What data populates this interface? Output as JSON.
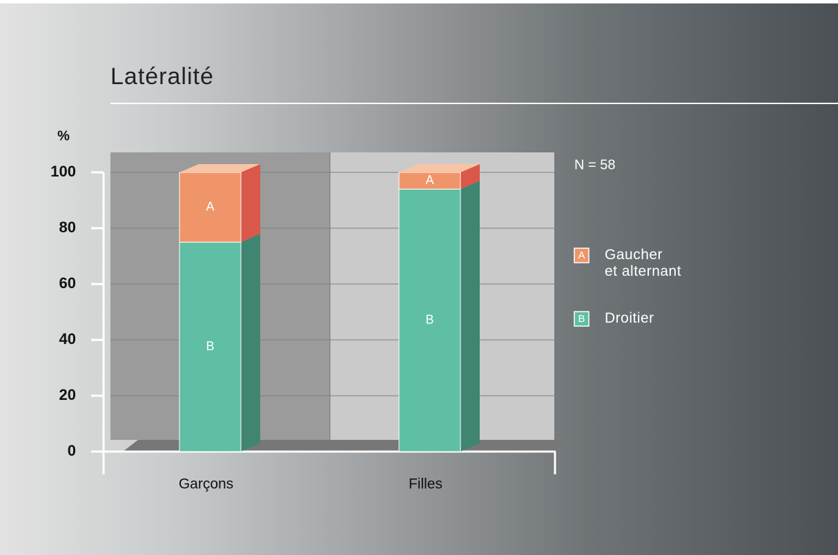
{
  "chart_data": {
    "type": "stacked-bar-3d",
    "title": "Latéralité",
    "y_label": "%",
    "annotation": "N = 58",
    "categories": [
      "Garçons",
      "Filles"
    ],
    "series": [
      {
        "name": "Droitier",
        "label": "B",
        "color": "#5fbfa4",
        "side_color": "#3f8572",
        "top_color": "#8fd6c0",
        "values": [
          75,
          94
        ]
      },
      {
        "name": "Gaucher\net alternant",
        "label": "A",
        "color": "#f0956a",
        "side_color": "#d9584a",
        "top_color": "#f8c4a6",
        "values": [
          25,
          6
        ]
      }
    ],
    "ylim": [
      0,
      100
    ],
    "yticks": [
      0,
      20,
      40,
      60,
      80,
      100
    ],
    "grid": true
  }
}
